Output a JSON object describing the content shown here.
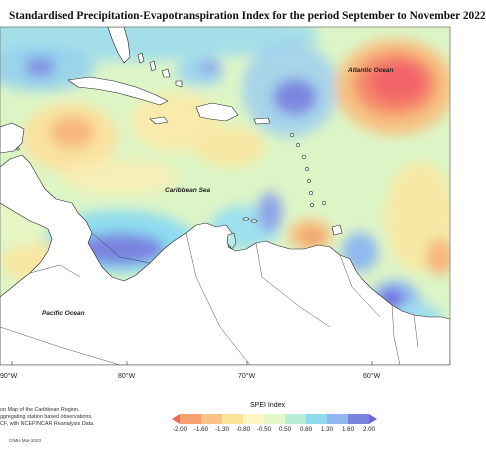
{
  "title": "Standardised Precipitation-Evapotranspiration Index for the period September to November 2022",
  "map_labels": {
    "atlantic": "Atlantic Ocean",
    "caribbean": "Caribbean Sea",
    "pacific": "Pacific Ocean"
  },
  "longitude_labels": [
    "90°W",
    "80°W",
    "70°W",
    "60°W"
  ],
  "notes": [
    "on Map of the Caribbean Region.",
    "ggregating station based observations,",
    "CF, with NCEP/NCAR Reanalysis Data."
  ],
  "credit": "CIMH Mar-2023",
  "legend": {
    "title": "SPEI Index",
    "ticks": [
      "-2.00",
      "-1.60",
      "-1.30",
      "-0.80",
      "-0.50",
      "0.50",
      "0.80",
      "1.30",
      "1.60",
      "2.00"
    ],
    "colors": [
      "#ea6a5a",
      "#f4a070",
      "#f8c486",
      "#fbe39a",
      "#fdf6c0",
      "#e4f7c8",
      "#b9ecd4",
      "#8fdcef",
      "#8fb9f0",
      "#7a84e0",
      "#6a66d8"
    ]
  },
  "colors": {
    "base_field": "#ddf5c6",
    "land": "#ffffff",
    "dry_strong": "#f26a6a",
    "wet_strong": "#6f68e0"
  }
}
